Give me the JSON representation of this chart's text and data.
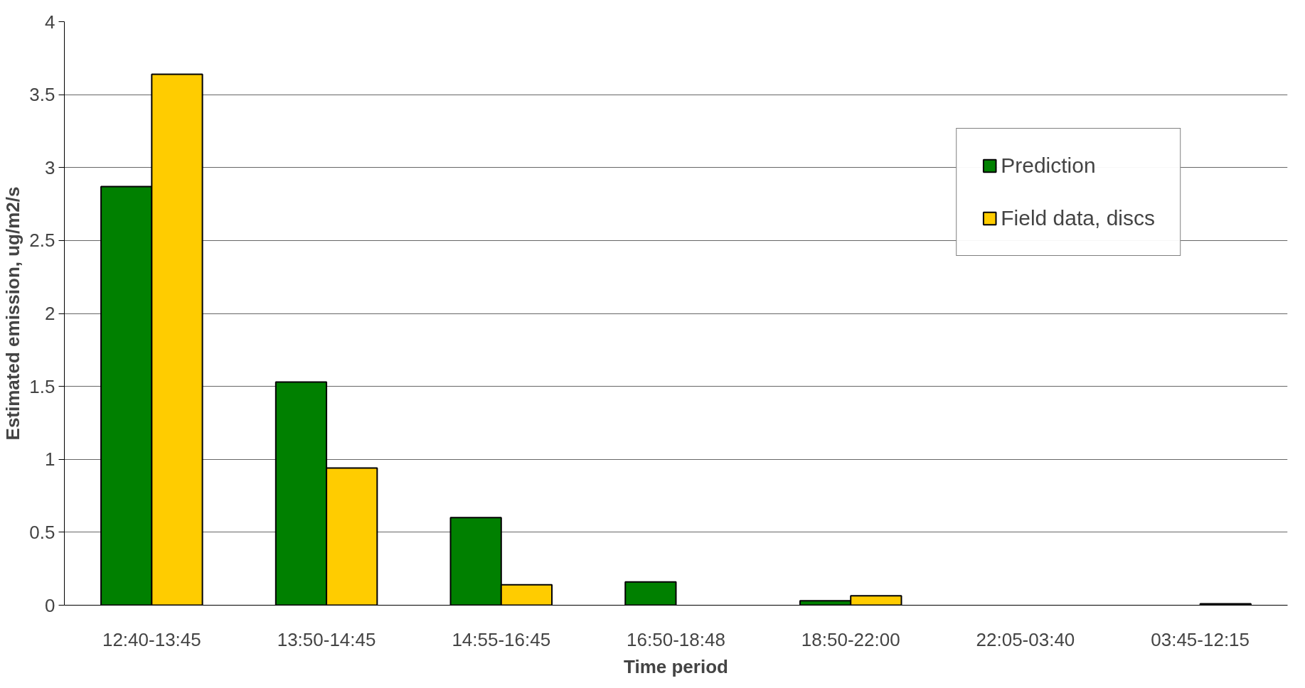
{
  "chart_data": {
    "type": "bar",
    "xlabel": "Time period",
    "ylabel": "Estimated emission, ug/m2/s",
    "categories": [
      "12:40-13:45",
      "13:50-14:45",
      "14:55-16:45",
      "16:50-18:48",
      "18:50-22:00",
      "22:05-03:40",
      "03:45-12:15"
    ],
    "series": [
      {
        "name": "Prediction",
        "color": "#008000",
        "values": [
          2.87,
          1.53,
          0.6,
          0.16,
          0.03,
          null,
          null
        ]
      },
      {
        "name": "Field data, discs",
        "color": "#ffcc00",
        "values": [
          3.64,
          0.94,
          0.14,
          null,
          0.065,
          null,
          0.01
        ]
      }
    ],
    "ylim": [
      0,
      4
    ],
    "yticks": [
      0,
      {
        "value": 0.5,
        "label": "0.5"
      },
      1,
      {
        "value": 1.5,
        "label": "1.5"
      },
      2,
      {
        "value": 2.5,
        "label": "2.5"
      },
      3,
      {
        "value": 3.5,
        "label": "3.5"
      },
      4
    ],
    "grid": "y",
    "legend": "top right"
  }
}
